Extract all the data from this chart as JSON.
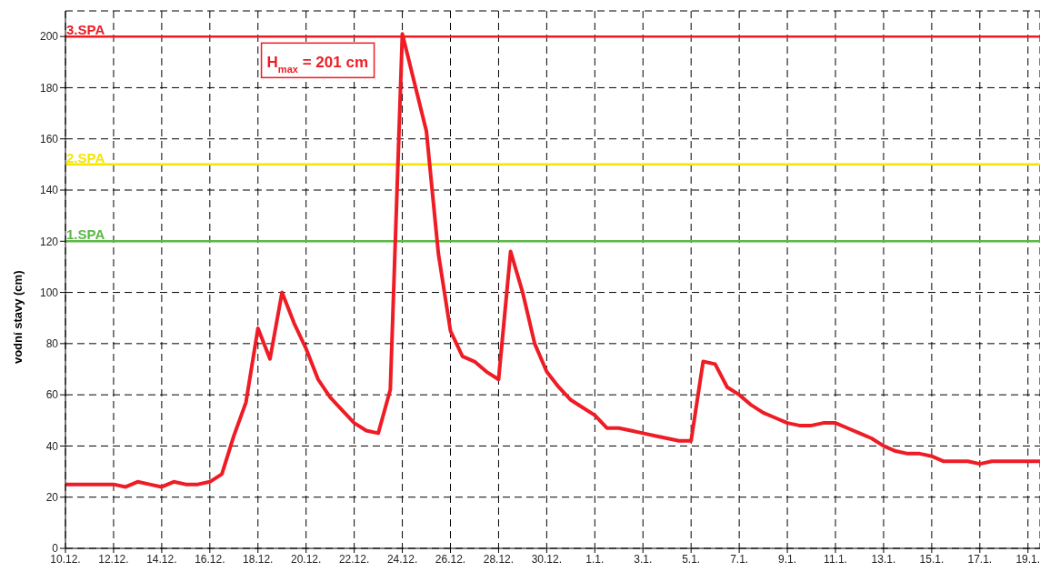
{
  "chart_data": {
    "type": "line",
    "ylabel": "vodní stavy (cm)",
    "categories": [
      "10.12.",
      null,
      null,
      null,
      "12.12.",
      null,
      null,
      null,
      "14.12.",
      null,
      null,
      null,
      "16.12.",
      null,
      null,
      null,
      "18.12.",
      null,
      null,
      null,
      "20.12.",
      null,
      null,
      null,
      "22.12.",
      null,
      null,
      null,
      "24.12.",
      null,
      null,
      null,
      "26.12.",
      null,
      null,
      null,
      "28.12.",
      null,
      null,
      null,
      "30.12.",
      null,
      null,
      null,
      "1.1.",
      null,
      null,
      null,
      "3.1.",
      null,
      null,
      null,
      "5.1.",
      null,
      null,
      null,
      "7.1.",
      null,
      null,
      null,
      "9.1.",
      null,
      null,
      null,
      "11.1.",
      null,
      null,
      null,
      "13.1.",
      null,
      null,
      null,
      "15.1.",
      null,
      null,
      null,
      "17.1.",
      null,
      null,
      null,
      "19.1.",
      null
    ],
    "series": [
      {
        "color": "#ee1c25",
        "values": [
          25,
          25,
          25,
          25,
          25,
          24,
          26,
          25,
          24,
          26,
          25,
          25,
          26,
          29,
          44,
          57,
          86,
          74,
          100,
          88,
          78,
          66,
          59,
          54,
          49,
          46,
          45,
          62,
          201,
          182,
          163,
          115,
          85,
          75,
          73,
          69,
          66,
          116,
          100,
          80,
          69,
          63,
          58,
          55,
          52,
          47,
          47,
          46,
          45,
          44,
          43,
          42,
          42,
          73,
          72,
          63,
          60,
          56,
          53,
          51,
          49,
          48,
          48,
          49,
          49,
          47,
          45,
          43,
          40,
          38,
          37,
          37,
          36,
          34,
          34,
          34,
          33,
          34,
          34,
          34,
          34,
          34
        ]
      }
    ],
    "ylim": [
      0,
      210
    ],
    "yticks": [
      0,
      20,
      40,
      60,
      80,
      100,
      120,
      140,
      160,
      180,
      200
    ],
    "grid": true,
    "line_style": "solid",
    "marker": "none",
    "ref_lines": [
      {
        "axis": "y",
        "value": 200,
        "label": "3.SPA",
        "color": "#ee1c25"
      },
      {
        "axis": "y",
        "value": 150,
        "label": "2.SPA",
        "color": "#f5e600"
      },
      {
        "axis": "y",
        "value": 120,
        "label": "1.SPA",
        "color": "#5ab946"
      }
    ],
    "annotations": [
      {
        "text": "H$_{max}$ = 201 cm",
        "x": "24.12.",
        "y": 201
      }
    ]
  }
}
